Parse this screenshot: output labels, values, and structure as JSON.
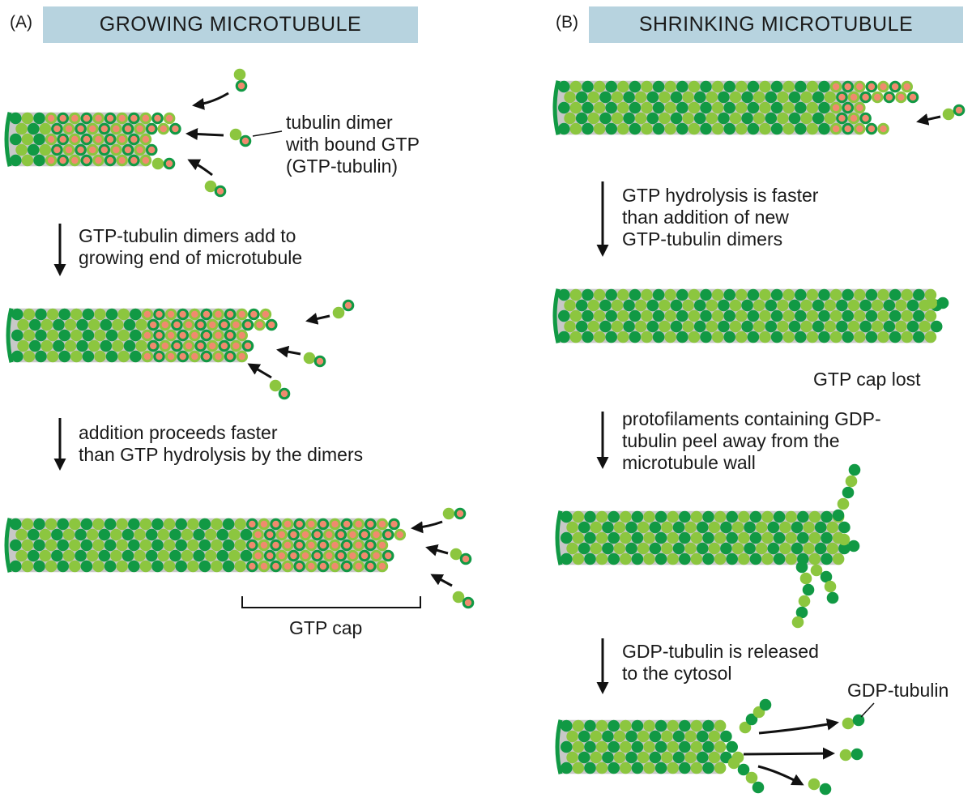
{
  "panel_a": {
    "letter": "(A)",
    "title": "GROWING MICROTUBULE",
    "dimer_label": "tubulin dimer\nwith bound GTP\n(GTP-tubulin)",
    "step1": "GTP-tubulin dimers add to\ngrowing end of microtubule",
    "step2": "addition proceeds faster\nthan GTP hydrolysis by the dimers",
    "cap_label": "GTP cap"
  },
  "panel_b": {
    "letter": "(B)",
    "title": "SHRINKING MICROTUBULE",
    "step1": "GTP hydrolysis is faster\nthan addition of new\nGTP-tubulin dimers",
    "cap_lost": "GTP cap lost",
    "step2": "protofilaments containing GDP-\ntubulin peel away from the\nmicrotubule wall",
    "step3": "GDP-tubulin is released\nto the cytosol",
    "gdp_label": "GDP-tubulin"
  },
  "colors": {
    "dark_green": "#119944",
    "light_green": "#8cc63f",
    "gtp_orange": "#f08a6e",
    "header": "#b7d3df",
    "wall": "#c8c8c8"
  }
}
